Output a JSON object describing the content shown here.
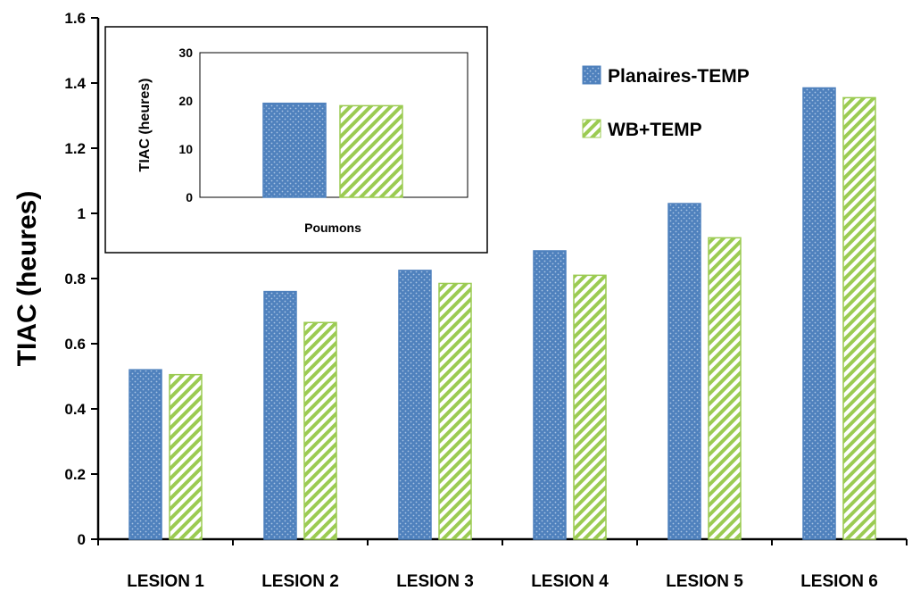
{
  "chart_data": [
    {
      "type": "bar",
      "title": "",
      "xlabel": "",
      "ylabel": "TIAC (heures)",
      "ylim": [
        0,
        1.6
      ],
      "yticks": [
        "0",
        "0.2",
        "0.4",
        "0.6",
        "0.8",
        "1",
        "1.2",
        "1.4",
        "1.6"
      ],
      "categories": [
        "LESION 1",
        "LESION 2",
        "LESION 3",
        "LESION 4",
        "LESION 5",
        "LESION 6"
      ],
      "series": [
        {
          "name": "Planaires-TEMP",
          "values": [
            0.52,
            0.76,
            0.825,
            0.885,
            1.03,
            1.385
          ],
          "color": "#4f81bd",
          "pattern": "dots"
        },
        {
          "name": "WB+TEMP",
          "values": [
            0.505,
            0.665,
            0.785,
            0.81,
            0.925,
            1.355
          ],
          "color": "#9bcb52",
          "pattern": "diagonal-stripes"
        }
      ],
      "legend": "top-right",
      "grid": false
    },
    {
      "type": "bar",
      "title": "",
      "xlabel": "",
      "ylabel": "TIAC (heures)",
      "ylim": [
        0,
        30
      ],
      "yticks": [
        "0",
        "10",
        "20",
        "30"
      ],
      "categories": [
        "Poumons"
      ],
      "series": [
        {
          "name": "Planaires-TEMP",
          "values": [
            19.5
          ],
          "color": "#4f81bd",
          "pattern": "dots"
        },
        {
          "name": "WB+TEMP",
          "values": [
            19
          ],
          "color": "#9bcb52",
          "pattern": "diagonal-stripes"
        }
      ],
      "legend": "none",
      "grid": false,
      "position": "inset-top-left"
    }
  ]
}
